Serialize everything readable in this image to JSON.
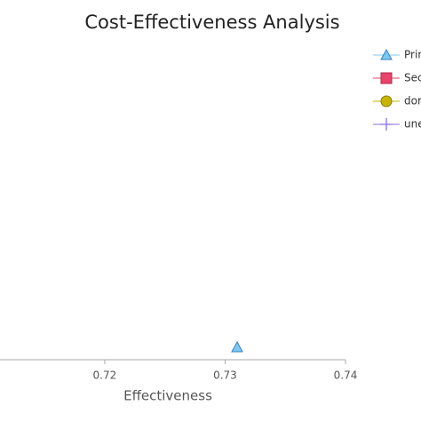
{
  "chart_data": {
    "type": "scatter",
    "title": "Cost-Effectiveness Analysis",
    "x_label": "Effectiveness",
    "xlim": [
      0.7113,
      0.74
    ],
    "xticks": [
      0.72,
      0.73,
      0.74
    ],
    "series": [
      {
        "name": "Prim",
        "color": "#7ec8f0",
        "marker": "triangle",
        "x": [
          0.731
        ]
      },
      {
        "name": "Sec",
        "color": "#e8456a",
        "marker": "square",
        "x": []
      },
      {
        "name": "dor",
        "color": "#c8b400",
        "marker": "circle",
        "x": []
      },
      {
        "name": "une",
        "color": "#8a6fd8",
        "marker": "plus",
        "x": []
      }
    ]
  }
}
